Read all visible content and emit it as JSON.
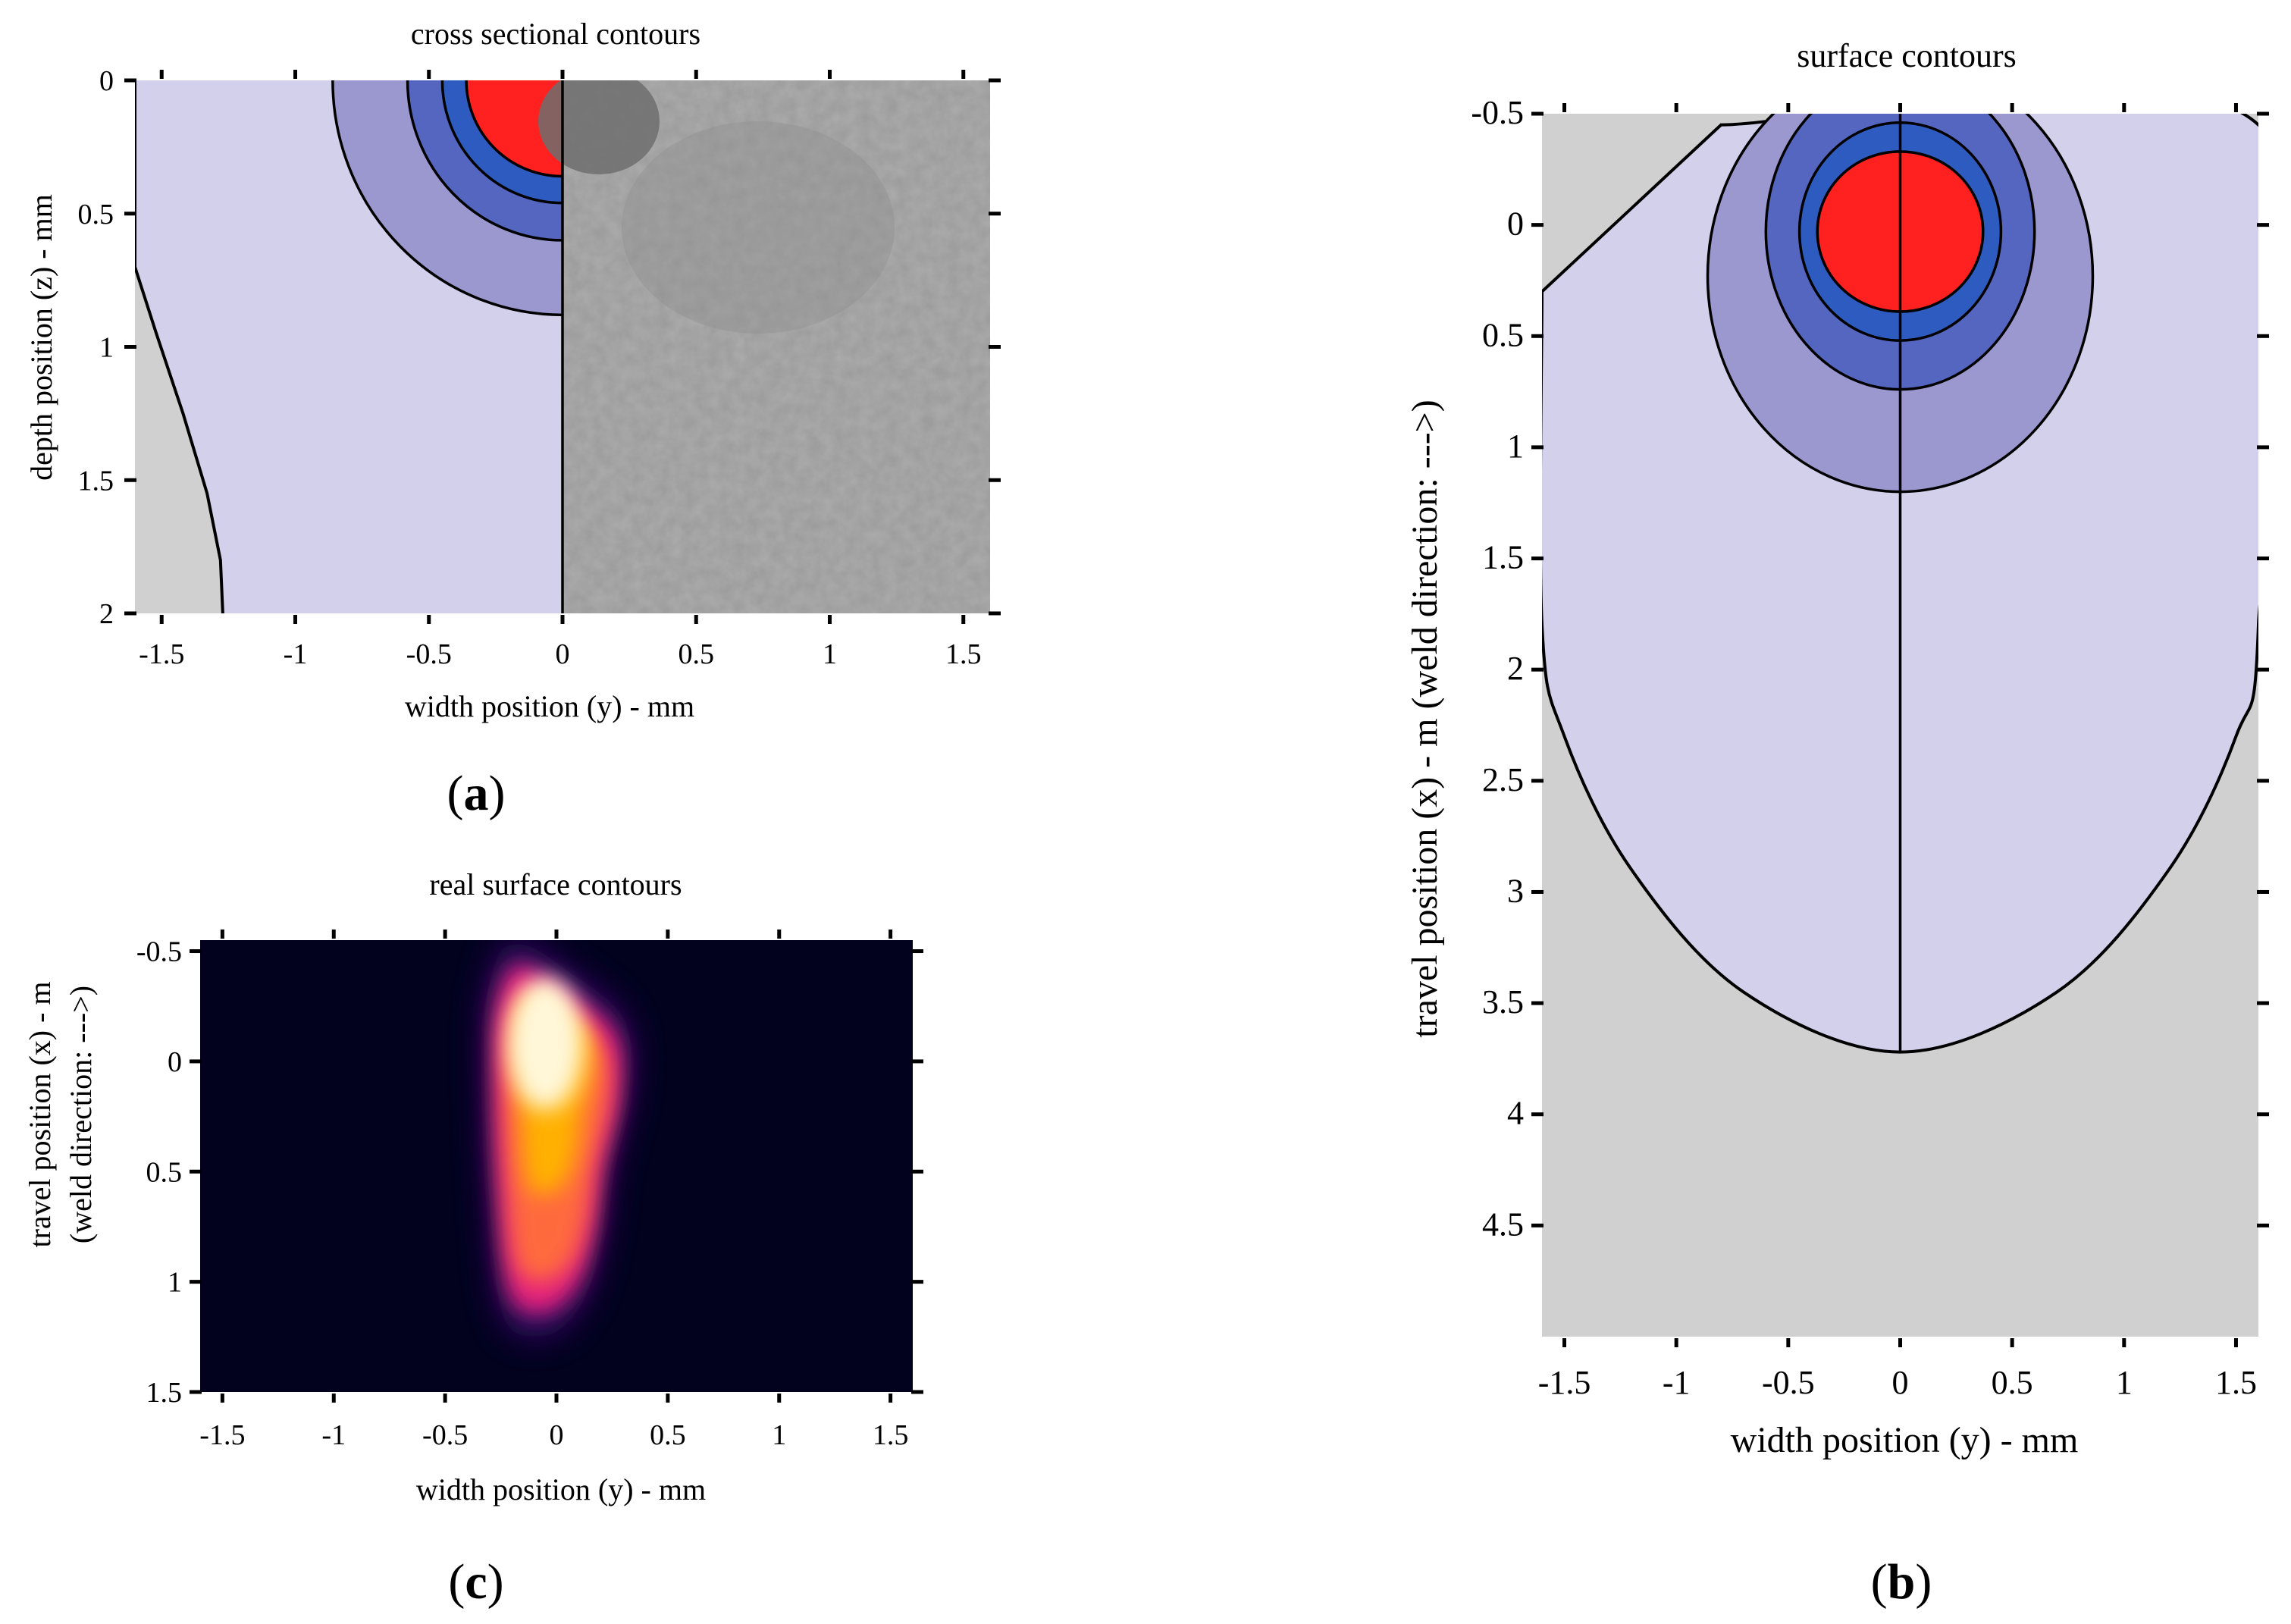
{
  "chart_data": [
    {
      "id": "a",
      "type": "contour",
      "title": "cross sectional contours",
      "xlabel": "width position (y) - mm",
      "ylabel": "depth position (z) - mm",
      "xlim": [
        -1.6,
        1.6
      ],
      "ylim": [
        0,
        2
      ],
      "y_inverted": true,
      "xticks": [
        -1.5,
        -1,
        -0.5,
        0,
        0.5,
        1,
        1.5
      ],
      "xtick_labels": [
        "-1.5",
        "-1",
        "-0.5",
        "0",
        "0.5",
        "1",
        "1.5"
      ],
      "yticks": [
        0,
        0.5,
        1,
        1.5,
        2
      ],
      "ytick_labels": [
        "0",
        "0.5",
        "1",
        "1.5",
        "2"
      ],
      "right_half": "micrograph (grey texture)",
      "contour_levels": [
        {
          "level": 1,
          "color": "#ff2020",
          "radius_y": 0.36,
          "radius_z": 0.36
        },
        {
          "level": 2,
          "color": "#2e5bc0",
          "radius_y": 0.45,
          "radius_z": 0.46
        },
        {
          "level": 3,
          "color": "#5566c0",
          "radius_y": 0.58,
          "radius_z": 0.6
        },
        {
          "level": 4,
          "color": "#9b98d0",
          "radius_y": 0.86,
          "radius_z": 0.88
        }
      ],
      "outer_boundary": [
        {
          "y": -1.6,
          "z": 0.7
        },
        {
          "y": -1.52,
          "z": 0.95
        },
        {
          "y": -1.42,
          "z": 1.25
        },
        {
          "y": -1.33,
          "z": 1.55
        },
        {
          "y": -1.28,
          "z": 1.8
        },
        {
          "y": -1.27,
          "z": 2.0
        }
      ],
      "colors": {
        "background": "#d0d0d0",
        "fill": "#d2d0eb"
      },
      "panel_label": "a"
    },
    {
      "id": "b",
      "type": "contour",
      "title": "surface contours",
      "xlabel": "width position (y) - mm",
      "ylabel": "travel position (x) - m   (weld direction: --->)",
      "xlim": [
        -1.6,
        1.6
      ],
      "ylim": [
        -0.5,
        5
      ],
      "y_inverted": true,
      "xticks": [
        -1.5,
        -1,
        -0.5,
        0,
        0.5,
        1,
        1.5
      ],
      "xtick_labels": [
        "-1.5",
        "-1",
        "-0.5",
        "0",
        "0.5",
        "1",
        "1.5"
      ],
      "yticks": [
        -0.5,
        0,
        0.5,
        1,
        1.5,
        2,
        2.5,
        3,
        3.5,
        4,
        4.5
      ],
      "ytick_labels": [
        "-0.5",
        "0",
        "0.5",
        "1",
        "1.5",
        "2",
        "2.5",
        "3",
        "3.5",
        "4",
        "4.5"
      ],
      "contour_levels": [
        {
          "level": 1,
          "color": "#ff2020",
          "center_x": 0.03,
          "radius_y": 0.37,
          "radius_x": 0.36
        },
        {
          "level": 2,
          "color": "#2e5bc0",
          "center_x": 0.03,
          "radius_y": 0.45,
          "radius_x": 0.49
        },
        {
          "level": 3,
          "color": "#5566c0",
          "center_x": 0.03,
          "radius_y": 0.6,
          "radius_x": 0.71
        },
        {
          "level": 4,
          "color": "#9b98d0",
          "center_x": 0.23,
          "radius_y": 0.86,
          "radius_x": 0.97
        }
      ],
      "outer_boundary": [
        {
          "y": -1.6,
          "x": 0.3
        },
        {
          "y": -1.6,
          "x": 1.8
        },
        {
          "y": -1.5,
          "x": 2.3
        },
        {
          "y": -1.2,
          "x": 2.9
        },
        {
          "y": -0.7,
          "x": 3.45
        },
        {
          "y": 0,
          "x": 3.72
        },
        {
          "y": 0.7,
          "x": 3.45
        },
        {
          "y": 1.2,
          "x": 2.9
        },
        {
          "y": 1.5,
          "x": 2.3
        },
        {
          "y": 1.6,
          "x": 1.8
        },
        {
          "y": 1.6,
          "x": -0.45
        },
        {
          "y": -0.8,
          "x": -0.45
        }
      ],
      "colors": {
        "background": "#d0d0d0",
        "fill": "#d2d0eb"
      },
      "panel_label": "b"
    },
    {
      "id": "c",
      "type": "heatmap",
      "title": "real surface contours",
      "xlabel": "width position (y) - mm",
      "ylabel_line1": "travel position (x) - m",
      "ylabel_line2": "(weld direction: --->)",
      "xlim": [
        -1.6,
        1.6
      ],
      "ylim": [
        -0.55,
        1.5
      ],
      "y_inverted": true,
      "xticks": [
        -1.5,
        -1,
        -0.5,
        0,
        0.5,
        1,
        1.5
      ],
      "xtick_labels": [
        "-1.5",
        "-1",
        "-0.5",
        "0",
        "0.5",
        "1",
        "1.5"
      ],
      "yticks": [
        -0.5,
        0,
        0.5,
        1,
        1.5
      ],
      "ytick_labels": [
        "-0.5",
        "0",
        "0.5",
        "1",
        "1.5"
      ],
      "hot_region": [
        {
          "y": -0.18,
          "x": -0.48
        },
        {
          "y": 0.05,
          "x": -0.35
        },
        {
          "y": 0.28,
          "x": -0.15
        },
        {
          "y": 0.3,
          "x": 0.15
        },
        {
          "y": 0.22,
          "x": 0.5
        },
        {
          "y": 0.18,
          "x": 0.8
        },
        {
          "y": 0.1,
          "x": 1.05
        },
        {
          "y": -0.05,
          "x": 1.18
        },
        {
          "y": -0.22,
          "x": 1.1
        },
        {
          "y": -0.28,
          "x": 0.6
        },
        {
          "y": -0.3,
          "x": 0.0
        },
        {
          "y": -0.28,
          "x": -0.3
        }
      ],
      "hot_peak": {
        "y": -0.05,
        "x": -0.08
      },
      "colormap": [
        "#02021f",
        "#e5237b",
        "#ff6a3d",
        "#ffb000",
        "#fff7d8"
      ],
      "panel_label": "c"
    }
  ]
}
